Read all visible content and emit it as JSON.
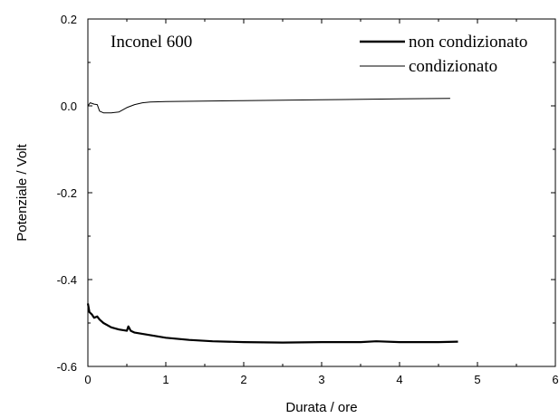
{
  "chart_data": {
    "type": "line",
    "annotation": "Inconel 600",
    "xlabel": "Durata / ore",
    "ylabel": "Potenziale / Volt",
    "xlim": [
      0,
      6
    ],
    "ylim": [
      -0.6,
      0.2
    ],
    "x_ticks": [
      {
        "value": 0,
        "label": "0"
      },
      {
        "value": 1,
        "label": "1"
      },
      {
        "value": 2,
        "label": "2"
      },
      {
        "value": 3,
        "label": "3"
      },
      {
        "value": 4,
        "label": "4"
      },
      {
        "value": 5,
        "label": "5"
      },
      {
        "value": 6,
        "label": "6"
      }
    ],
    "y_ticks": [
      {
        "value": 0.2,
        "label": "0.2"
      },
      {
        "value": 0.0,
        "label": "0.0"
      },
      {
        "value": -0.2,
        "label": "-0.2"
      },
      {
        "value": -0.4,
        "label": "-0.4"
      },
      {
        "value": -0.6,
        "label": "-0.6"
      }
    ],
    "grid": false,
    "legend_position": "top-right",
    "series": [
      {
        "name": "non condizionato",
        "line_style": "thick",
        "x": [
          0,
          0.02,
          0.05,
          0.08,
          0.12,
          0.15,
          0.2,
          0.3,
          0.4,
          0.5,
          0.52,
          0.55,
          0.6,
          0.8,
          1.0,
          1.3,
          1.6,
          2.0,
          2.5,
          3.0,
          3.5,
          3.7,
          4.0,
          4.5,
          4.75
        ],
        "y": [
          -0.455,
          -0.475,
          -0.48,
          -0.488,
          -0.485,
          -0.492,
          -0.5,
          -0.51,
          -0.515,
          -0.518,
          -0.508,
          -0.518,
          -0.522,
          -0.528,
          -0.534,
          -0.539,
          -0.542,
          -0.544,
          -0.545,
          -0.544,
          -0.544,
          -0.542,
          -0.544,
          -0.544,
          -0.543
        ]
      },
      {
        "name": "condizionato",
        "line_style": "thin",
        "x": [
          0,
          0.03,
          0.08,
          0.12,
          0.15,
          0.2,
          0.3,
          0.4,
          0.5,
          0.6,
          0.7,
          0.8,
          1.0,
          2.0,
          3.0,
          4.0,
          4.65
        ],
        "y": [
          0.0,
          0.007,
          0.004,
          0.003,
          -0.012,
          -0.016,
          -0.016,
          -0.014,
          -0.004,
          0.003,
          0.007,
          0.009,
          0.01,
          0.012,
          0.014,
          0.016,
          0.017
        ]
      }
    ]
  }
}
